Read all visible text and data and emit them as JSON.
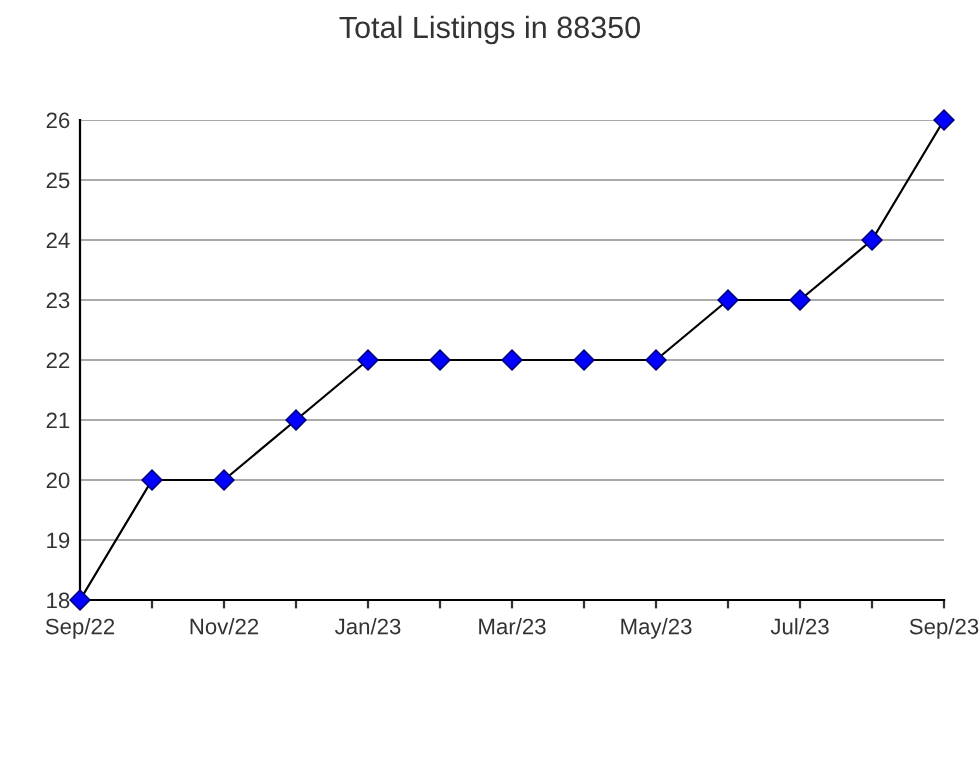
{
  "chart_data": {
    "type": "line",
    "title": "Total Listings in 88350",
    "categories": [
      "Sep/22",
      null,
      "Nov/22",
      null,
      "Jan/23",
      null,
      "Mar/23",
      null,
      "May/23",
      null,
      "Jul/23",
      null,
      "Sep/23"
    ],
    "series": [
      {
        "color": "#0000ff",
        "values": [
          18,
          20,
          20,
          21,
          22,
          22,
          22,
          22,
          22,
          23,
          23,
          24,
          26
        ]
      }
    ],
    "ylim": [
      18,
      26
    ],
    "yticks": [
      18,
      19,
      20,
      21,
      22,
      23,
      24,
      25,
      26
    ],
    "grid": "y",
    "marker": "diamond",
    "line_style": "solid",
    "legend": false
  }
}
